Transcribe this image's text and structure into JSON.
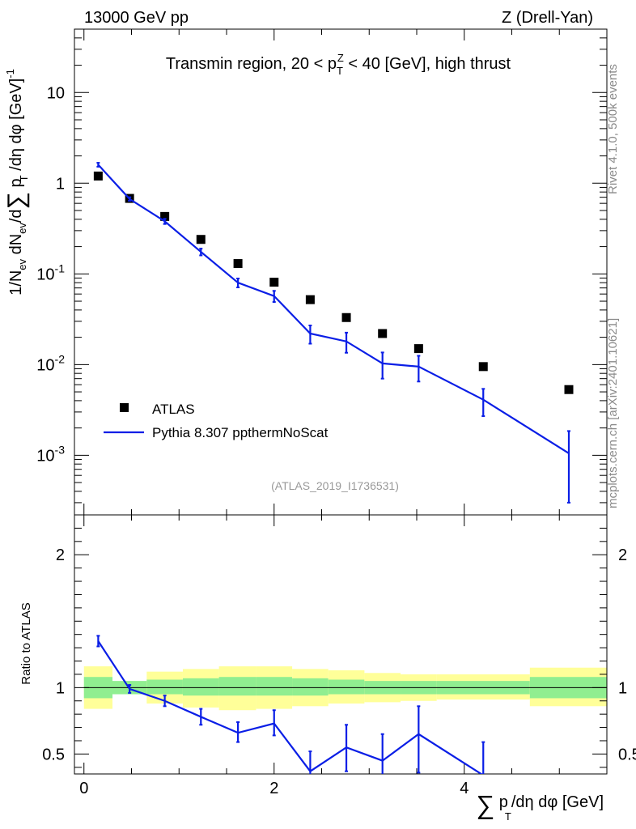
{
  "header": {
    "left": "13000 GeV pp",
    "right": "Z (Drell-Yan)"
  },
  "side_labels": {
    "rivet": "Rivet 4.1.0,  500k events",
    "mcplots": "mcplots.cern.ch [arXiv:2401.10621]"
  },
  "colors": {
    "data": "#000000",
    "mc": "#0a1ee6",
    "band_inner": "#90ee90",
    "band_outer": "#ffff99"
  },
  "chart_data": [
    {
      "type": "scatter",
      "title": "Transmin region, 20 < p_T^Z < 40 [GeV], high thrust",
      "analysis_tag": "(ATLAS_2019_I1736531)",
      "ylabel": "1/N_ev dN_ev/d∑p_T/dη dφ [GeV]^-1",
      "yscale": "log",
      "xlim": [
        -0.1,
        5.5
      ],
      "ylim": [
        0.00022,
        50
      ],
      "y_tick_labels": [
        "10",
        "1",
        "10^-1",
        "10^-2",
        "10^-3"
      ],
      "legend": [
        "ATLAS",
        "Pythia 8.307 ppthermNoScat"
      ],
      "legend_position": "bottom-left",
      "series": [
        {
          "name": "ATLAS",
          "style": "markers",
          "x": [
            0.15,
            0.48,
            0.85,
            1.23,
            1.62,
            2.0,
            2.38,
            2.76,
            3.14,
            3.52,
            4.2,
            5.1
          ],
          "y": [
            1.2,
            0.68,
            0.43,
            0.24,
            0.13,
            0.081,
            0.052,
            0.033,
            0.022,
            0.015,
            0.0095,
            0.0053
          ]
        },
        {
          "name": "Pythia 8.307 ppthermNoScat",
          "style": "line",
          "x": [
            0.15,
            0.48,
            0.85,
            1.23,
            1.62,
            2.0,
            2.38,
            2.76,
            3.14,
            3.52,
            4.2,
            5.1
          ],
          "y": [
            1.6,
            0.67,
            0.38,
            0.175,
            0.08,
            0.057,
            0.022,
            0.018,
            0.0103,
            0.0095,
            0.0041,
            0.00105
          ],
          "yerr_low": [
            0.08,
            0.03,
            0.025,
            0.015,
            0.009,
            0.008,
            0.005,
            0.0045,
            0.0033,
            0.003,
            0.0014,
            0.00075
          ],
          "yerr_high": [
            0.08,
            0.03,
            0.025,
            0.015,
            0.009,
            0.008,
            0.005,
            0.0045,
            0.0033,
            0.003,
            0.0013,
            0.0008
          ]
        }
      ]
    },
    {
      "type": "line",
      "ylabel": "Ratio to ATLAS",
      "xlabel": "∑p_T/dη dφ [GeV]",
      "xlim": [
        -0.1,
        5.5
      ],
      "ylim": [
        0.35,
        2.3
      ],
      "x_tick_labels": [
        "0",
        "2",
        "4"
      ],
      "y_tick_labels": [
        "0.5",
        "1",
        "2"
      ],
      "reference_line": 1,
      "band": {
        "edges": [
          0.0,
          0.3,
          0.66,
          1.04,
          1.42,
          1.81,
          2.19,
          2.57,
          2.95,
          3.33,
          3.71,
          4.69,
          5.5
        ],
        "inner_low": [
          0.92,
          0.95,
          0.95,
          0.94,
          0.94,
          0.94,
          0.94,
          0.95,
          0.95,
          0.95,
          0.95,
          0.92
        ],
        "inner_high": [
          1.08,
          1.05,
          1.06,
          1.07,
          1.08,
          1.08,
          1.07,
          1.06,
          1.05,
          1.05,
          1.05,
          1.08
        ],
        "outer_low": [
          0.84,
          0.96,
          0.88,
          0.85,
          0.83,
          0.84,
          0.86,
          0.88,
          0.89,
          0.9,
          0.91,
          0.86
        ],
        "outer_high": [
          1.16,
          1.04,
          1.12,
          1.14,
          1.16,
          1.16,
          1.14,
          1.13,
          1.11,
          1.1,
          1.1,
          1.15
        ]
      },
      "series": [
        {
          "name": "Pythia 8.307 ppthermNoScat",
          "x": [
            0.15,
            0.48,
            0.85,
            1.23,
            1.62,
            2.0,
            2.38,
            2.76,
            3.14,
            3.52,
            4.2
          ],
          "y": [
            1.35,
            0.99,
            0.9,
            0.78,
            0.66,
            0.73,
            0.37,
            0.55,
            0.45,
            0.65,
            0.34
          ],
          "yerr_low": [
            0.04,
            0.03,
            0.04,
            0.06,
            0.07,
            0.09,
            0.15,
            0.18,
            0.2,
            0.29,
            0.3
          ],
          "yerr_high": [
            0.04,
            0.03,
            0.04,
            0.06,
            0.08,
            0.1,
            0.15,
            0.17,
            0.2,
            0.21,
            0.25
          ]
        }
      ]
    }
  ]
}
